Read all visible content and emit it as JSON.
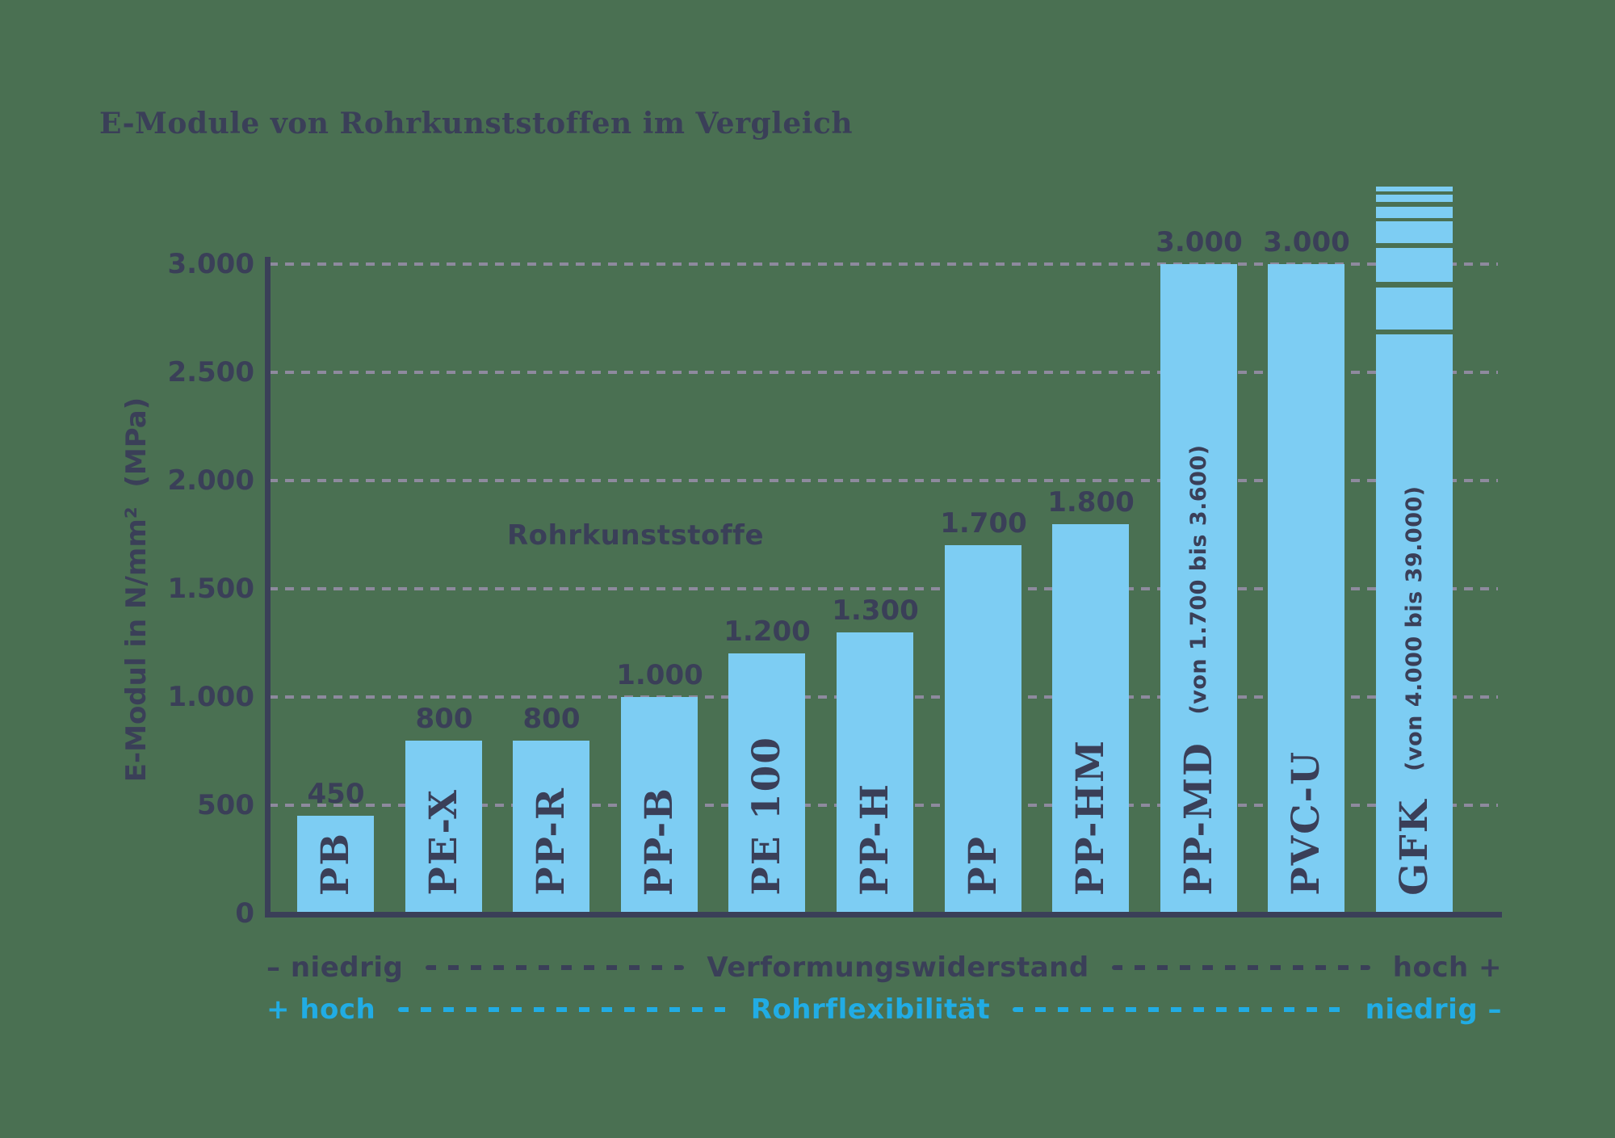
{
  "title": "E-Module von Rohrkunststoffen im Vergleich",
  "colors": {
    "background": "#4A7052",
    "navy": "#3A3F58",
    "bar_blue": "#7DCDF3",
    "cyan": "#21ACE4",
    "grid_dash": "#8E8A9E"
  },
  "chart_data": {
    "type": "bar",
    "title": "E-Module von Rohrkunststoffen im Vergleich",
    "ylabel": "E-Modul in N/mm²  (MPa)",
    "xlabel": "",
    "ylim": [
      0,
      3000
    ],
    "grid": "horizontal dashed",
    "legend": "none",
    "inner_label": "Rohrkunststoffe",
    "yticks": [
      {
        "value": 0,
        "label": "0"
      },
      {
        "value": 500,
        "label": "500"
      },
      {
        "value": 1000,
        "label": "1.000"
      },
      {
        "value": 1500,
        "label": "1.500"
      },
      {
        "value": 2000,
        "label": "2.000"
      },
      {
        "value": 2500,
        "label": "2.500"
      },
      {
        "value": 3000,
        "label": "3.000"
      }
    ],
    "categories": [
      "PB",
      "PE-X",
      "PP-R",
      "PP-B",
      "PE 100",
      "PP-H",
      "PP",
      "PP-HM",
      "PP-MD",
      "PVC-U",
      "GFK"
    ],
    "bars": [
      {
        "label": "PB",
        "value": 450,
        "value_label": "450"
      },
      {
        "label": "PE-X",
        "value": 800,
        "value_label": "800"
      },
      {
        "label": "PP-R",
        "value": 800,
        "value_label": "800"
      },
      {
        "label": "PP-B",
        "value": 1000,
        "value_label": "1.000"
      },
      {
        "label": "PE 100",
        "value": 1200,
        "value_label": "1.200"
      },
      {
        "label": "PP-H",
        "value": 1300,
        "value_label": "1.300"
      },
      {
        "label": "PP",
        "value": 1700,
        "value_label": "1.700"
      },
      {
        "label": "PP-HM",
        "value": 1800,
        "value_label": "1.800"
      },
      {
        "label": "PP-MD",
        "value": 3000,
        "value_label": "3.000",
        "range_note": "(von 1.700 bis 3.600)"
      },
      {
        "label": "PVC-U",
        "value": 3000,
        "value_label": "3.000"
      },
      {
        "label": "GFK",
        "value": 3000,
        "value_label": "",
        "range_note": "(von 4.000 bis 39.000)",
        "broken_top": true,
        "drawn_solid_units": 2675
      }
    ],
    "x_axis_annotations": [
      {
        "id": "resistance",
        "left": "– niedrig",
        "center": "Verformungswiderstand",
        "right": "hoch +",
        "color": "navy"
      },
      {
        "id": "flexibility",
        "left": "+ hoch",
        "center": "Rohrflexibilität",
        "right": "niedrig –",
        "color": "cyan"
      }
    ]
  }
}
